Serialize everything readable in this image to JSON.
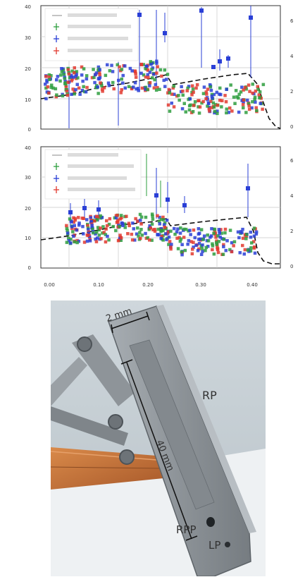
{
  "panel_top": {
    "left_axis_ticks": [
      "0",
      "10",
      "20",
      "30",
      "40"
    ],
    "right_axis_ticks": [
      "0",
      "2",
      "4",
      "6"
    ],
    "legend_swatch_colors": [
      "#b0b0b0",
      "#2e9e3e",
      "#2a3fd6",
      "#e23a2f"
    ]
  },
  "panel_bottom": {
    "left_axis_ticks": [
      "0",
      "10",
      "20",
      "30",
      "40"
    ],
    "right_axis_ticks": [
      "0",
      "2",
      "4",
      "6"
    ],
    "legend_swatch_colors": [
      "#b0b0b0",
      "#2e9e3e",
      "#2a3fd6",
      "#e23a2f"
    ]
  },
  "x_axis": {
    "ticks": [
      "0.00",
      "0.10",
      "0.20",
      "0.30",
      "0.40"
    ]
  },
  "photo": {
    "dimension_width": "2 mm",
    "dimension_length": "40 mm",
    "label_rp": "RP",
    "label_rpp": "RPP",
    "label_lp": "LP"
  },
  "colors": {
    "green": "#2e9e3e",
    "blue": "#2a3fd6",
    "red": "#e23a2f",
    "grey": "#9a9a9a",
    "grid": "#c9c9c9",
    "steel": "#9aa0a6",
    "copper": "#c8743a"
  }
}
